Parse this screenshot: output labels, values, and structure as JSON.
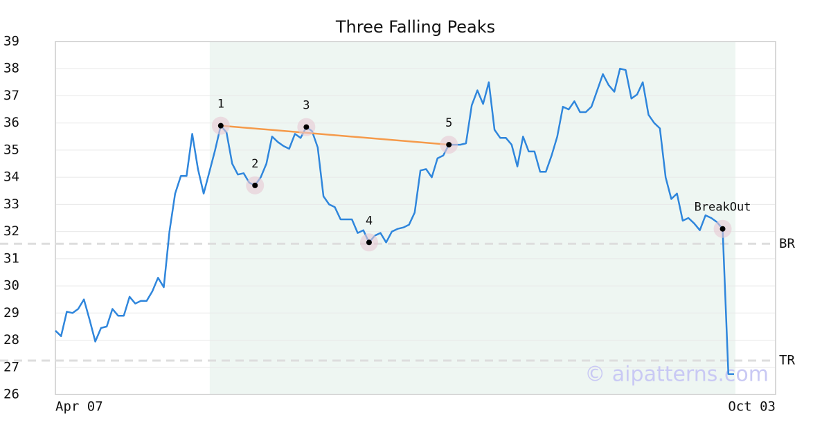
{
  "chart_data": {
    "type": "line",
    "title": "Three Falling Peaks",
    "watermark": "© aipatterns.com",
    "color": "#2f86dc",
    "trend_color": "#f59a4a",
    "ylim": [
      26,
      39
    ],
    "yticks": [
      26,
      27,
      28,
      29,
      30,
      31,
      32,
      33,
      34,
      35,
      36,
      37,
      38,
      39
    ],
    "grid": true,
    "categories": [
      "Apr 07",
      null,
      null,
      null,
      null,
      null,
      null,
      null,
      null,
      null,
      null,
      null,
      null,
      null,
      null,
      null,
      null,
      null,
      null,
      null,
      null,
      null,
      null,
      null,
      null,
      null,
      null,
      null,
      null,
      null,
      null,
      null,
      null,
      null,
      null,
      null,
      null,
      null,
      null,
      null,
      null,
      null,
      null,
      null,
      null,
      null,
      null,
      null,
      null,
      null,
      null,
      null,
      null,
      null,
      null,
      null,
      null,
      null,
      null,
      null,
      null,
      null,
      null,
      null,
      null,
      null,
      null,
      null,
      null,
      null,
      null,
      null,
      null,
      null,
      null,
      null,
      null,
      null,
      null,
      null,
      null,
      null,
      null,
      null,
      null,
      null,
      null,
      null,
      null,
      null,
      null,
      null,
      null,
      null,
      null,
      null,
      null,
      null,
      null,
      null,
      null,
      null,
      null,
      null,
      null,
      null,
      null,
      null,
      null,
      null,
      null,
      null,
      null,
      null,
      null,
      null,
      null,
      null,
      null,
      "Oct 03"
    ],
    "values": [
      28.35,
      28.15,
      29.05,
      29.0,
      29.15,
      29.5,
      28.75,
      27.95,
      28.45,
      28.5,
      29.15,
      28.9,
      28.9,
      29.6,
      29.35,
      29.45,
      29.45,
      29.8,
      30.3,
      29.95,
      32.0,
      33.4,
      34.05,
      34.05,
      35.6,
      34.3,
      33.4,
      34.2,
      35.0,
      35.9,
      35.65,
      34.5,
      34.1,
      34.15,
      33.8,
      33.7,
      34.0,
      34.5,
      35.5,
      35.3,
      35.15,
      35.05,
      35.6,
      35.45,
      35.85,
      35.7,
      35.1,
      33.3,
      33.0,
      32.9,
      32.45,
      32.45,
      32.45,
      31.95,
      32.05,
      31.6,
      31.85,
      31.95,
      31.6,
      32.0,
      32.1,
      32.15,
      32.25,
      32.7,
      34.25,
      34.3,
      34.0,
      34.7,
      34.8,
      35.2,
      35.2,
      35.2,
      35.25,
      36.65,
      37.2,
      36.7,
      37.5,
      35.75,
      35.45,
      35.45,
      35.2,
      34.4,
      35.5,
      34.95,
      34.95,
      34.2,
      34.2,
      34.8,
      35.5,
      36.6,
      36.5,
      36.8,
      36.4,
      36.4,
      36.6,
      37.2,
      37.8,
      37.4,
      37.15,
      38.0,
      37.95,
      36.9,
      37.05,
      37.5,
      36.3,
      36.0,
      35.8,
      34.0,
      33.2,
      33.4,
      32.4,
      32.5,
      32.3,
      32.05,
      32.6,
      32.5,
      32.35,
      32.1,
      26.75,
      26.75
    ],
    "annotations": [
      {
        "label": "1",
        "index": 29
      },
      {
        "label": "2",
        "index": 35
      },
      {
        "label": "3",
        "index": 44
      },
      {
        "label": "4",
        "index": 55
      },
      {
        "label": "5",
        "index": 69
      },
      {
        "label": "BreakOut",
        "index": 117
      }
    ],
    "levels": [
      {
        "label": "BR",
        "value": 31.55
      },
      {
        "label": "TR",
        "value": 27.25
      }
    ]
  }
}
